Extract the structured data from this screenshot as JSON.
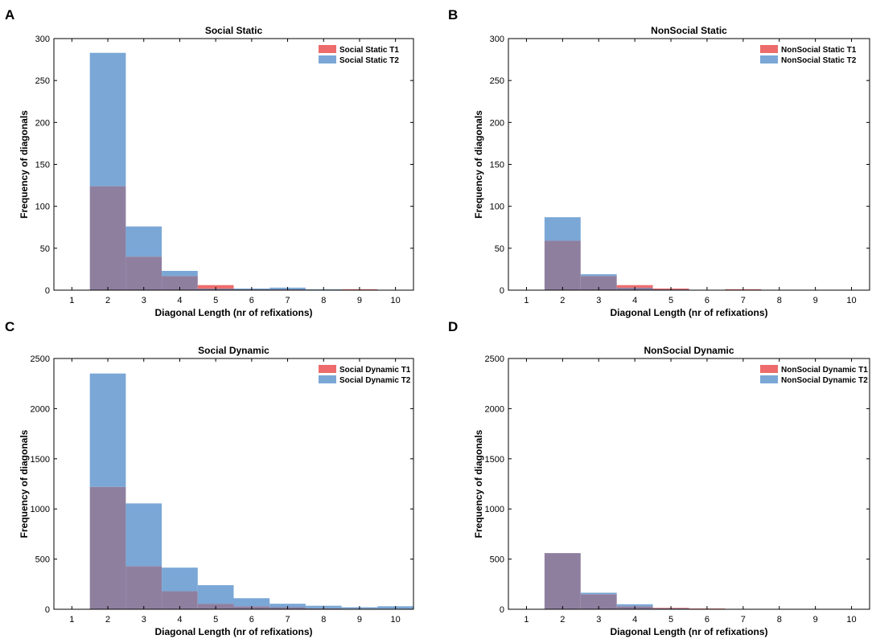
{
  "colors": {
    "t1": "#ed6b6b",
    "t2": "#7aa7d6",
    "overlap": "#8f7f9f"
  },
  "chart_data": [
    {
      "panel": "A",
      "type": "bar",
      "title": "Social Static",
      "xlabel": "Diagonal Length (nr of refixations)",
      "ylabel": "Frequency of diagonals",
      "categories": [
        1,
        2,
        3,
        4,
        5,
        6,
        7,
        8,
        9,
        10
      ],
      "xlim": [
        0.5,
        10.5
      ],
      "ylim": [
        0,
        300
      ],
      "yticks": [
        0,
        50,
        100,
        150,
        200,
        250,
        300
      ],
      "legend_position": "top-right",
      "series": [
        {
          "name": "Social Static T1",
          "values": [
            0,
            124,
            40,
            17,
            6,
            1,
            1,
            0,
            1,
            0
          ]
        },
        {
          "name": "Social Static T2",
          "values": [
            0,
            283,
            76,
            23,
            2,
            2,
            3,
            1,
            0,
            0
          ]
        }
      ]
    },
    {
      "panel": "B",
      "type": "bar",
      "title": "NonSocial Static",
      "xlabel": "Diagonal Length (nr of refixations)",
      "ylabel": "Frequency of diagonals",
      "categories": [
        1,
        2,
        3,
        4,
        5,
        6,
        7,
        8,
        9,
        10
      ],
      "xlim": [
        0.5,
        10.5
      ],
      "ylim": [
        0,
        300
      ],
      "yticks": [
        0,
        50,
        100,
        150,
        200,
        250,
        300
      ],
      "legend_position": "top-right",
      "series": [
        {
          "name": "NonSocial Static T1",
          "values": [
            0,
            59,
            17,
            6,
            2,
            0,
            1,
            0,
            0,
            0
          ]
        },
        {
          "name": "NonSocial Static T2",
          "values": [
            0,
            87,
            19,
            3,
            1,
            0,
            0,
            0,
            0,
            0
          ]
        }
      ]
    },
    {
      "panel": "C",
      "type": "bar",
      "title": "Social Dynamic",
      "xlabel": "Diagonal Length (nr of refixations)",
      "ylabel": "Frequency of diagonals",
      "categories": [
        1,
        2,
        3,
        4,
        5,
        6,
        7,
        8,
        9,
        10
      ],
      "xlim": [
        0.5,
        10.5
      ],
      "ylim": [
        0,
        2500
      ],
      "yticks": [
        0,
        500,
        1000,
        1500,
        2000,
        2500
      ],
      "legend_position": "top-right",
      "series": [
        {
          "name": "Social Dynamic T1",
          "values": [
            0,
            1220,
            430,
            180,
            55,
            30,
            20,
            10,
            5,
            5
          ]
        },
        {
          "name": "Social Dynamic T2",
          "values": [
            0,
            2350,
            1055,
            415,
            240,
            110,
            55,
            35,
            20,
            30
          ]
        }
      ]
    },
    {
      "panel": "D",
      "type": "bar",
      "title": "NonSocial Dynamic",
      "xlabel": "Diagonal Length (nr of refixations)",
      "ylabel": "Frequency of diagonals",
      "categories": [
        1,
        2,
        3,
        4,
        5,
        6,
        7,
        8,
        9,
        10
      ],
      "xlim": [
        0.5,
        10.5
      ],
      "ylim": [
        0,
        2500
      ],
      "yticks": [
        0,
        500,
        1000,
        1500,
        2000,
        2500
      ],
      "legend_position": "top-right",
      "series": [
        {
          "name": "NonSocial Dynamic T1",
          "values": [
            0,
            560,
            150,
            30,
            15,
            8,
            2,
            0,
            0,
            0
          ]
        },
        {
          "name": "NonSocial Dynamic T2",
          "values": [
            0,
            560,
            165,
            50,
            10,
            5,
            2,
            1,
            0,
            3
          ]
        }
      ]
    }
  ]
}
